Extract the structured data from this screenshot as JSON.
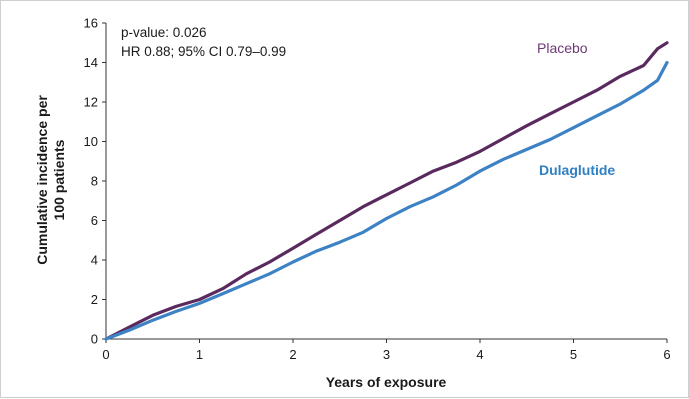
{
  "chart_data": {
    "type": "line",
    "title": "",
    "xlabel": "Years of exposure",
    "ylabel": "Cumulative incidence per 100 patients",
    "ylabel_lines": [
      "Cumulative incidence per",
      "100 patients"
    ],
    "xlim": [
      0,
      6
    ],
    "ylim": [
      0,
      16
    ],
    "x_ticks": [
      0,
      1,
      2,
      3,
      4,
      5,
      6
    ],
    "y_ticks": [
      0,
      2,
      4,
      6,
      8,
      10,
      12,
      14,
      16
    ],
    "grid": false,
    "legend": "none",
    "annotations": [
      "p-value: 0.026",
      "HR 0.88; 95% CI 0.79–0.99"
    ],
    "series": [
      {
        "name": "Placebo",
        "color": "#5a2a5e",
        "label_color": "#6b3a73",
        "label_weight": "normal",
        "x": [
          0,
          0.25,
          0.5,
          0.75,
          1,
          1.25,
          1.5,
          1.75,
          2,
          2.25,
          2.5,
          2.75,
          3,
          3.25,
          3.5,
          3.75,
          4,
          4.25,
          4.5,
          4.75,
          5,
          5.25,
          5.5,
          5.75,
          5.9,
          6
        ],
        "y": [
          0,
          0.6,
          1.2,
          1.65,
          2.0,
          2.55,
          3.3,
          3.9,
          4.6,
          5.3,
          6.0,
          6.7,
          7.3,
          7.9,
          8.5,
          8.95,
          9.5,
          10.15,
          10.8,
          11.4,
          12.0,
          12.6,
          13.3,
          13.85,
          14.7,
          15.0
        ]
      },
      {
        "name": "Dulaglutide",
        "color": "#3d82c4",
        "label_color": "#2f7fc3",
        "label_weight": "bold",
        "x": [
          0,
          0.25,
          0.5,
          0.75,
          1,
          1.25,
          1.5,
          1.75,
          2,
          2.25,
          2.5,
          2.75,
          3,
          3.25,
          3.5,
          3.75,
          4,
          4.25,
          4.5,
          4.75,
          5,
          5.25,
          5.5,
          5.75,
          5.9,
          6
        ],
        "y": [
          0,
          0.45,
          0.95,
          1.4,
          1.8,
          2.3,
          2.8,
          3.3,
          3.9,
          4.45,
          4.9,
          5.4,
          6.1,
          6.7,
          7.2,
          7.8,
          8.5,
          9.1,
          9.6,
          10.1,
          10.7,
          11.3,
          11.9,
          12.6,
          13.1,
          14.0
        ]
      }
    ]
  }
}
